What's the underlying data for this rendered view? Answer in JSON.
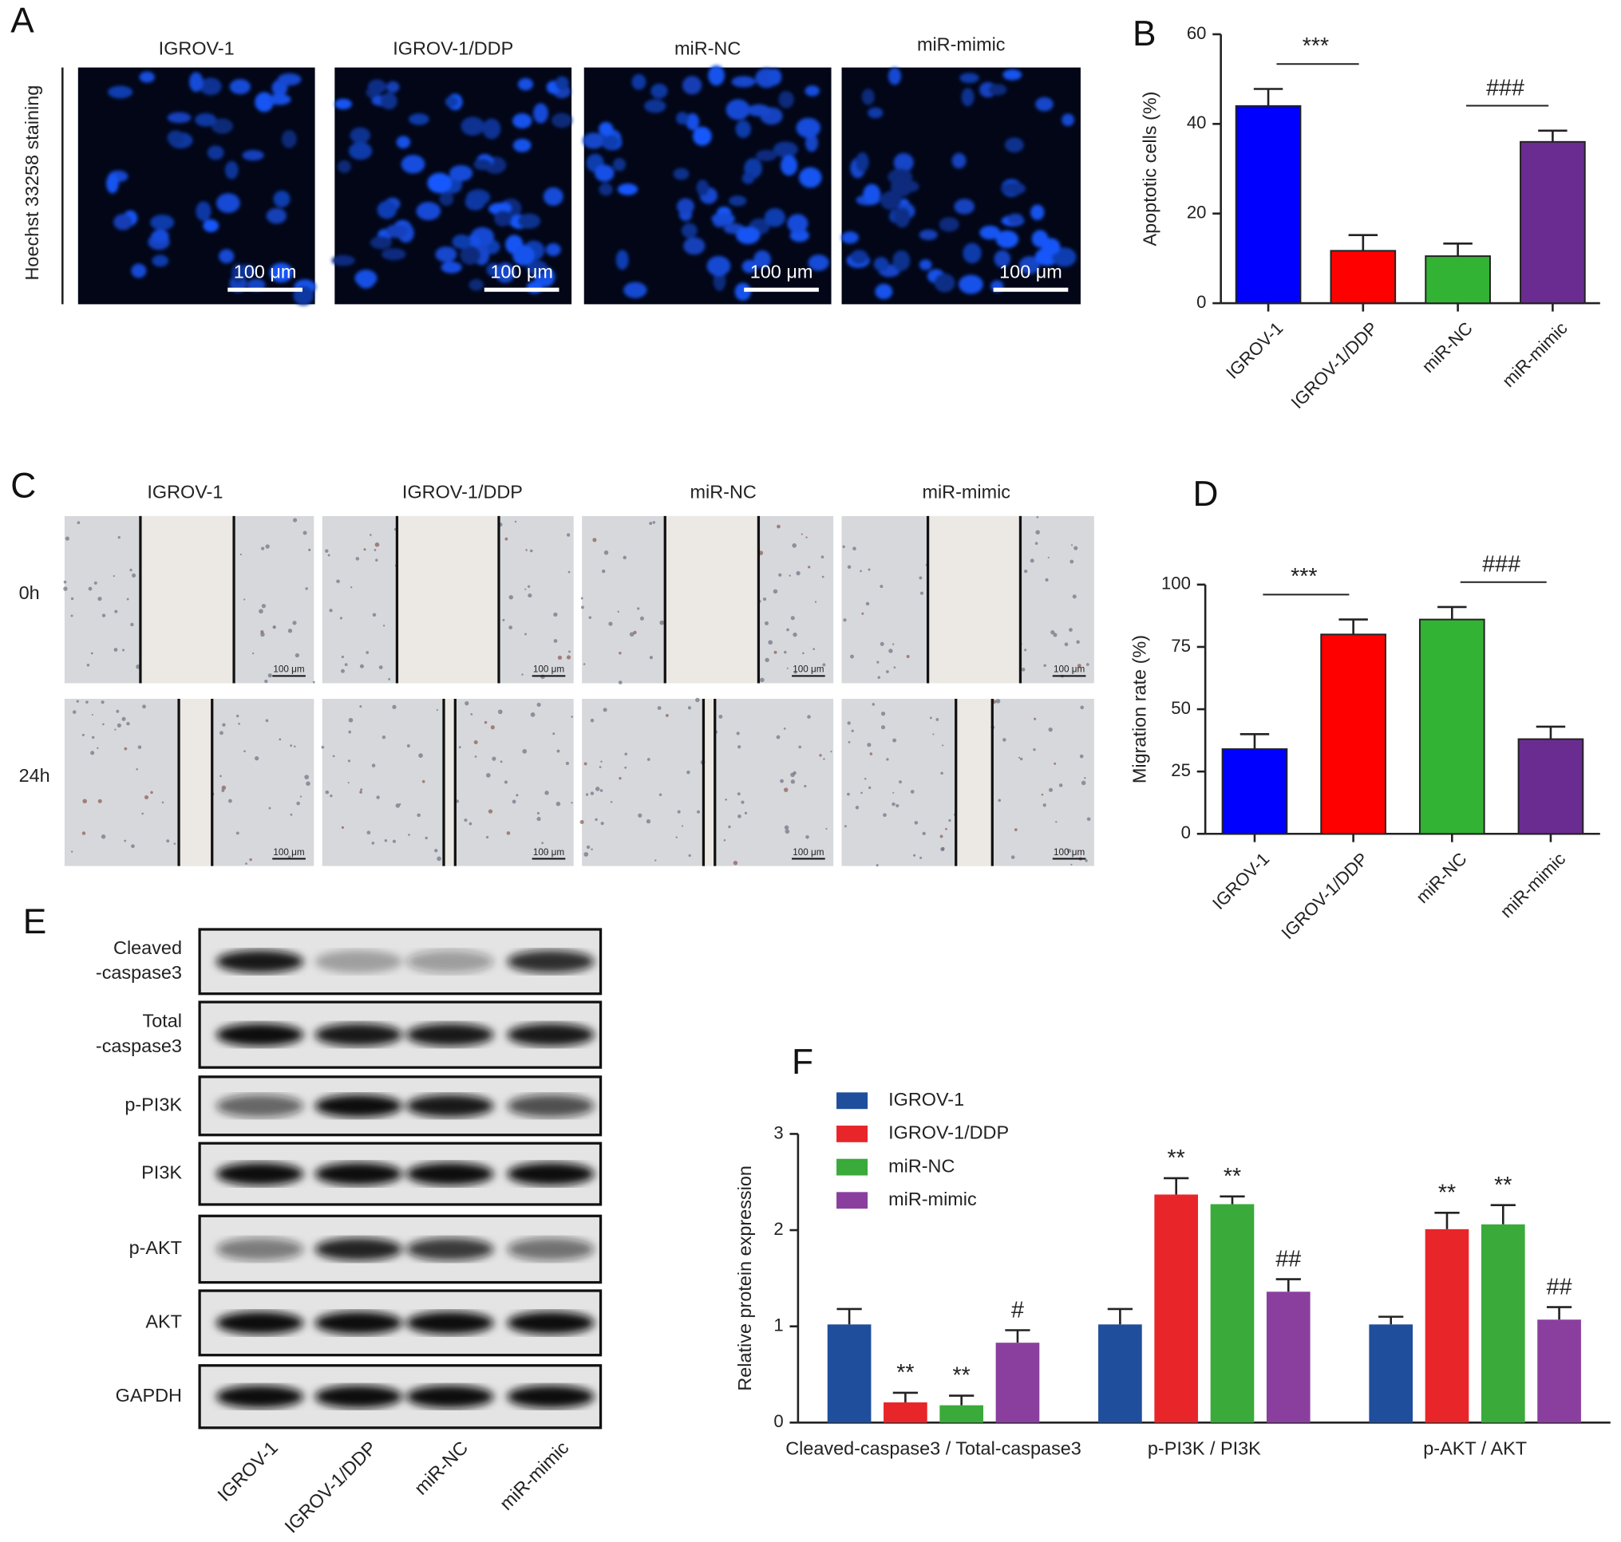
{
  "panels": {
    "A": {
      "letter": "A",
      "columns": [
        "IGROV-1",
        "IGROV-1/DDP",
        "miR-NC",
        "miR-mimic"
      ],
      "row_label": "Hoechst 33258 staining",
      "scale_bar": "100 μm"
    },
    "C": {
      "letter": "C",
      "columns": [
        "IGROV-1",
        "IGROV-1/DDP",
        "miR-NC",
        "miR-mimic"
      ],
      "rows": [
        "0h",
        "24h"
      ],
      "scale_bar": "100 μm"
    },
    "E": {
      "letter": "E",
      "proteins": [
        [
          "Cleaved",
          "-caspase3"
        ],
        [
          "Total",
          "-caspase3"
        ],
        [
          "p-PI3K"
        ],
        [
          "PI3K"
        ],
        [
          "p-AKT"
        ],
        [
          "AKT"
        ],
        [
          "GAPDH"
        ]
      ],
      "lanes": [
        "IGROV-1",
        "IGROV-1/DDP",
        "miR-NC",
        "miR-mimic"
      ]
    }
  },
  "chart_data": [
    {
      "type": "bar",
      "letter": "B",
      "ylabel": "Apoptotic cells (%)",
      "categories": [
        "IGROV-1",
        "IGROV-1/DDP",
        "miR-NC",
        "miR-mimic"
      ],
      "values": [
        44,
        11.7,
        10.5,
        36
      ],
      "errors": [
        3.8,
        3.5,
        2.8,
        2.5
      ],
      "colors": [
        "#0000ff",
        "#ff0000",
        "#33b333",
        "#6a2c91"
      ],
      "ylim": [
        0,
        60
      ],
      "yticks": [
        0,
        20,
        40,
        60
      ],
      "annotations": [
        {
          "text": "***",
          "from": 0,
          "to": 1
        },
        {
          "text": "###",
          "from": 2,
          "to": 3
        }
      ]
    },
    {
      "type": "bar",
      "letter": "D",
      "ylabel": "Migration rate (%)",
      "categories": [
        "IGROV-1",
        "IGROV-1/DDP",
        "miR-NC",
        "miR-mimic"
      ],
      "values": [
        34,
        80,
        86,
        38
      ],
      "errors": [
        6,
        6,
        5,
        5
      ],
      "colors": [
        "#0000ff",
        "#ff0000",
        "#33b333",
        "#6a2c91"
      ],
      "ylim": [
        0,
        100
      ],
      "yticks": [
        0,
        25,
        50,
        75,
        100
      ],
      "annotations": [
        {
          "text": "***",
          "from": 0,
          "to": 1
        },
        {
          "text": "###",
          "from": 2,
          "to": 3
        }
      ]
    },
    {
      "type": "grouped_bar",
      "letter": "F",
      "ylabel": "Relative protein expression",
      "categories": [
        "Cleaved-caspase3 / Total-caspase3",
        "p-PI3K / PI3K",
        "p-AKT / AKT"
      ],
      "series": [
        {
          "name": "IGROV-1",
          "color": "#1f4e9c",
          "values": [
            1.02,
            1.02,
            1.02
          ],
          "errors": [
            0.16,
            0.16,
            0.08
          ]
        },
        {
          "name": "IGROV-1/DDP",
          "color": "#e8262a",
          "values": [
            0.21,
            2.37,
            2.01
          ],
          "errors": [
            0.1,
            0.17,
            0.17
          ]
        },
        {
          "name": "miR-NC",
          "color": "#3aaa3a",
          "values": [
            0.18,
            2.27,
            2.06
          ],
          "errors": [
            0.1,
            0.08,
            0.2
          ]
        },
        {
          "name": "miR-mimic",
          "color": "#8a3f9e",
          "values": [
            0.83,
            1.36,
            1.07
          ],
          "errors": [
            0.13,
            0.13,
            0.13
          ]
        }
      ],
      "ylim": [
        0,
        3
      ],
      "yticks": [
        0,
        1,
        2,
        3
      ],
      "legend": "upper left",
      "annotations": [
        {
          "text": "**",
          "series": 1,
          "category": 0
        },
        {
          "text": "**",
          "series": 2,
          "category": 0
        },
        {
          "text": "#",
          "series": 3,
          "category": 0
        },
        {
          "text": "**",
          "series": 1,
          "category": 1
        },
        {
          "text": "**",
          "series": 2,
          "category": 1
        },
        {
          "text": "##",
          "series": 3,
          "category": 1
        },
        {
          "text": "**",
          "series": 1,
          "category": 2
        },
        {
          "text": "**",
          "series": 2,
          "category": 2
        },
        {
          "text": "##",
          "series": 3,
          "category": 2
        }
      ]
    }
  ]
}
